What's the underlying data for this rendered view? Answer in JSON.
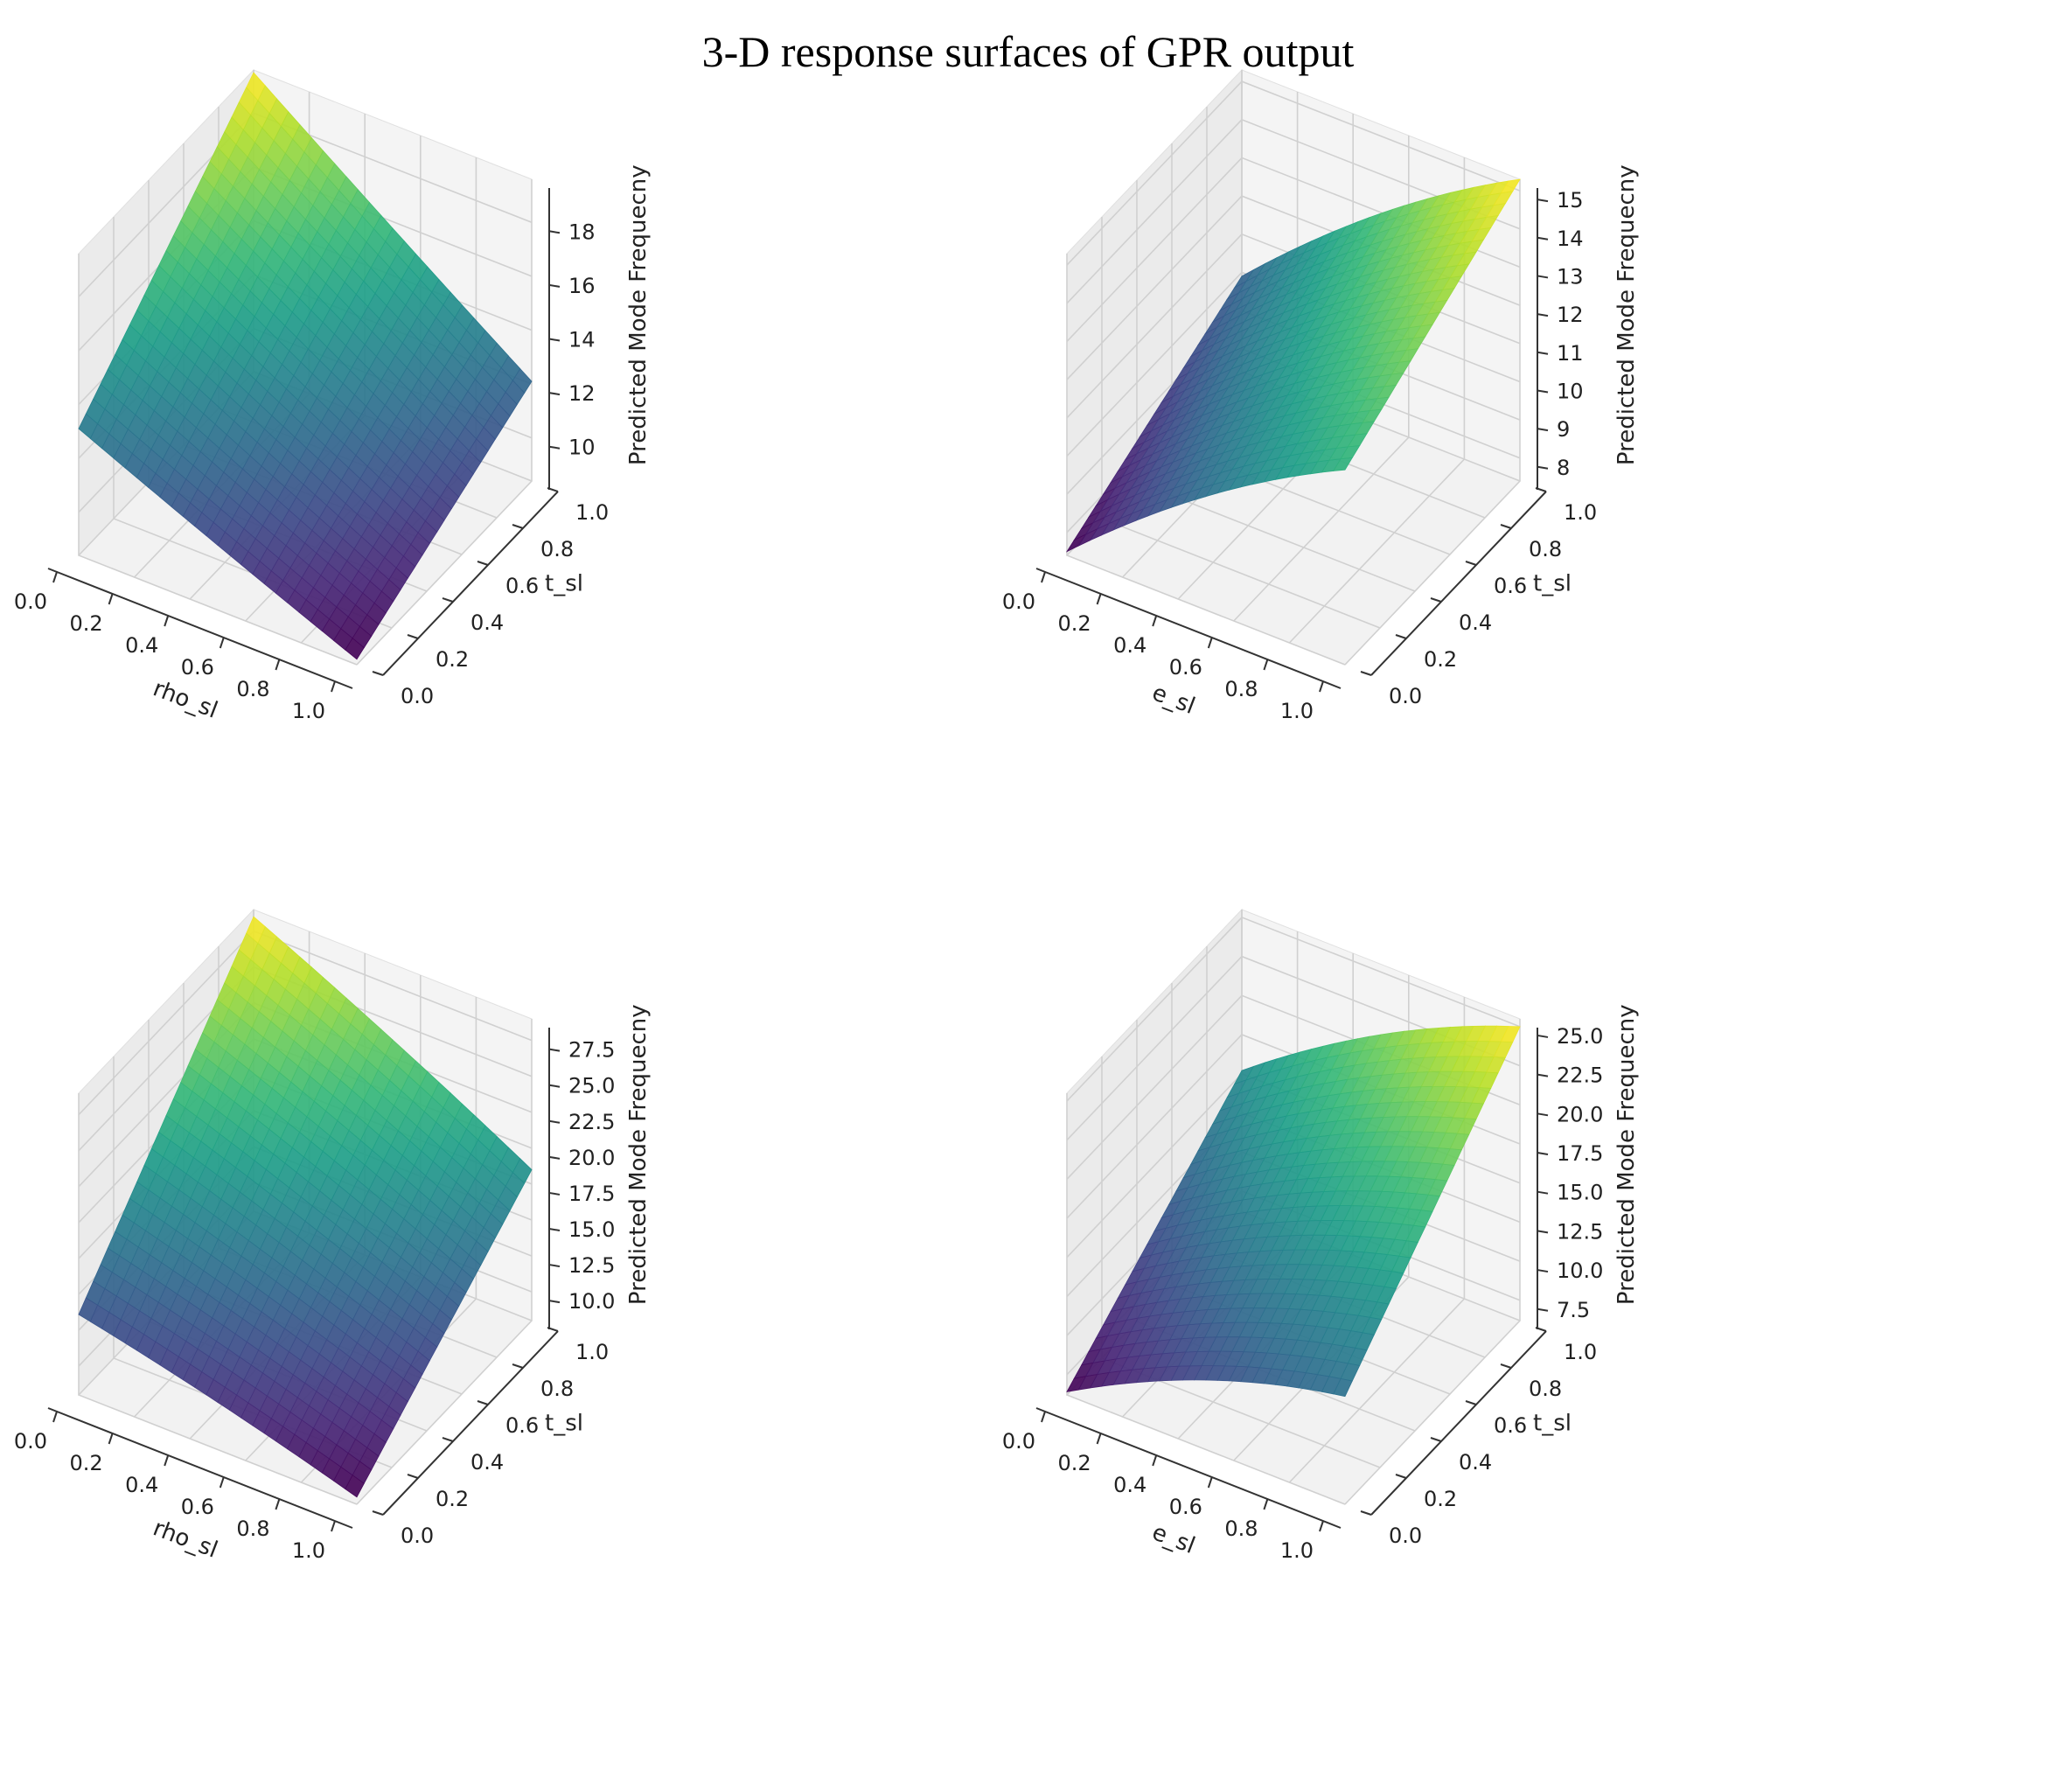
{
  "figure": {
    "title": "3-D response surfaces of GPR output"
  },
  "chart_data": [
    {
      "type": "surface",
      "xlabel": "rho_sl",
      "ylabel": "t_sl",
      "zlabel": "Predicted Mode Frequecny",
      "xlim": [
        0,
        1
      ],
      "ylim": [
        0,
        1
      ],
      "zlim": [
        8.4,
        19.6
      ],
      "xticks": [
        "0.0",
        "0.2",
        "0.4",
        "0.6",
        "0.8",
        "1.0"
      ],
      "yticks": [
        "0.0",
        "0.2",
        "0.4",
        "0.6",
        "0.8",
        "1.0"
      ],
      "zticks": [
        "10",
        "12",
        "14",
        "16",
        "18"
      ],
      "colormap": "viridis",
      "x": [
        0,
        1
      ],
      "y": [
        0,
        1
      ],
      "corner_z": {
        "x0_y0": 13.1,
        "x1_y0": 8.6,
        "x0_y1": 19.5,
        "x1_y1": 12.1
      },
      "cmin": 8.6,
      "cmax": 19.5
    },
    {
      "type": "surface",
      "xlabel": "e_sl",
      "ylabel": "t_sl",
      "zlabel": "Predicted Mode Frequecny",
      "xlim": [
        0,
        1
      ],
      "ylim": [
        0,
        1
      ],
      "zlim": [
        7.4,
        15.3
      ],
      "xticks": [
        "0.0",
        "0.2",
        "0.4",
        "0.6",
        "0.8",
        "1.0"
      ],
      "yticks": [
        "0.0",
        "0.2",
        "0.4",
        "0.6",
        "0.8",
        "1.0"
      ],
      "zticks": [
        "8",
        "9",
        "10",
        "11",
        "12",
        "13",
        "14",
        "15"
      ],
      "colormap": "viridis",
      "x": [
        0,
        1
      ],
      "y": [
        0,
        1
      ],
      "corner_z": {
        "x0_y0": 7.5,
        "x1_y0": 12.5,
        "x0_y1": 9.9,
        "x1_y1": 15.3
      },
      "cmin": 7.5,
      "cmax": 15.3
    },
    {
      "type": "surface",
      "xlabel": "rho_sl",
      "ylabel": "t_sl",
      "zlabel": "Predicted Mode Frequecny",
      "xlim": [
        0,
        1
      ],
      "ylim": [
        0,
        1
      ],
      "zlim": [
        8.0,
        29.0
      ],
      "xticks": [
        "0.0",
        "0.2",
        "0.4",
        "0.6",
        "0.8",
        "1.0"
      ],
      "yticks": [
        "0.0",
        "0.2",
        "0.4",
        "0.6",
        "0.8",
        "1.0"
      ],
      "zticks": [
        "10.0",
        "12.5",
        "15.0",
        "17.5",
        "20.0",
        "22.5",
        "25.0",
        "27.5"
      ],
      "colormap": "viridis",
      "x": [
        0,
        1
      ],
      "y": [
        0,
        1
      ],
      "corner_z": {
        "x0_y0": 13.6,
        "x1_y0": 8.5,
        "x0_y1": 28.5,
        "x1_y1": 18.5
      },
      "cmin": 8.5,
      "cmax": 28.5
    },
    {
      "type": "surface",
      "xlabel": "e_sl",
      "ylabel": "t_sl",
      "zlabel": "Predicted Mode Frequecny",
      "xlim": [
        0,
        1
      ],
      "ylim": [
        0,
        1
      ],
      "zlim": [
        6.2,
        25.5
      ],
      "xticks": [
        "0.0",
        "0.2",
        "0.4",
        "0.6",
        "0.8",
        "1.0"
      ],
      "yticks": [
        "0.0",
        "0.2",
        "0.4",
        "0.6",
        "0.8",
        "1.0"
      ],
      "zticks": [
        "7.5",
        "10.0",
        "12.5",
        "15.0",
        "17.5",
        "20.0",
        "22.5",
        "25.0"
      ],
      "colormap": "viridis",
      "x": [
        0,
        1
      ],
      "y": [
        0,
        1
      ],
      "corner_z": {
        "x0_y0": 6.4,
        "x1_y0": 13.1,
        "x0_y1": 15.2,
        "x1_y1": 25.0
      },
      "cmin": 6.4,
      "cmax": 25.0
    }
  ]
}
